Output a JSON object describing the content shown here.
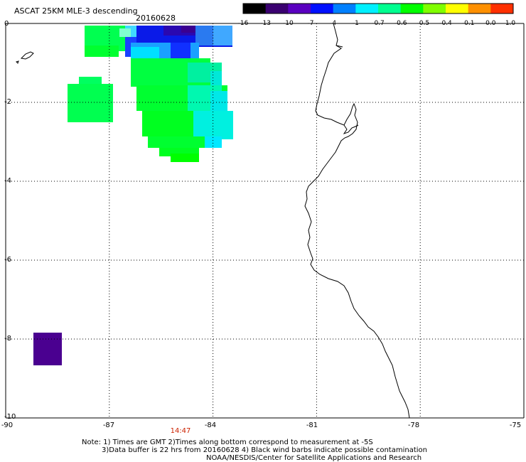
{
  "header": {
    "title": "ASCAT 25KM MLE-3 descending",
    "date": "20160628"
  },
  "colorbar": {
    "labels": [
      "-16",
      "-13",
      "-10",
      "-7",
      "-4",
      "-1",
      "-0.7",
      "-0.6",
      "-0.5",
      "-0.4",
      "-0.1",
      "0.0",
      "1.0"
    ],
    "colors": [
      "#000000",
      "#3a0070",
      "#5a00c0",
      "#0010ff",
      "#0080ff",
      "#00f0ff",
      "#00ff90",
      "#00ff00",
      "#80ff00",
      "#ffff00",
      "#ff9000",
      "#ff3000"
    ]
  },
  "axes": {
    "y_labels": [
      "0",
      "-2",
      "-4",
      "-6",
      "-8",
      "-10"
    ],
    "x_labels": [
      "-90",
      "-87",
      "-84",
      "-81",
      "-78",
      "-75"
    ]
  },
  "time_label": "14:47",
  "notes": {
    "line1": "Note: 1) Times are GMT 2)Times along bottom correspond to measurement at -5S",
    "line2": "3)Data buffer is 22 hrs from 20160628 4) Black wind barbs indicate possible contamination",
    "line3": "NOAA/NESDIS/Center for Satellite Applications and Research"
  }
}
